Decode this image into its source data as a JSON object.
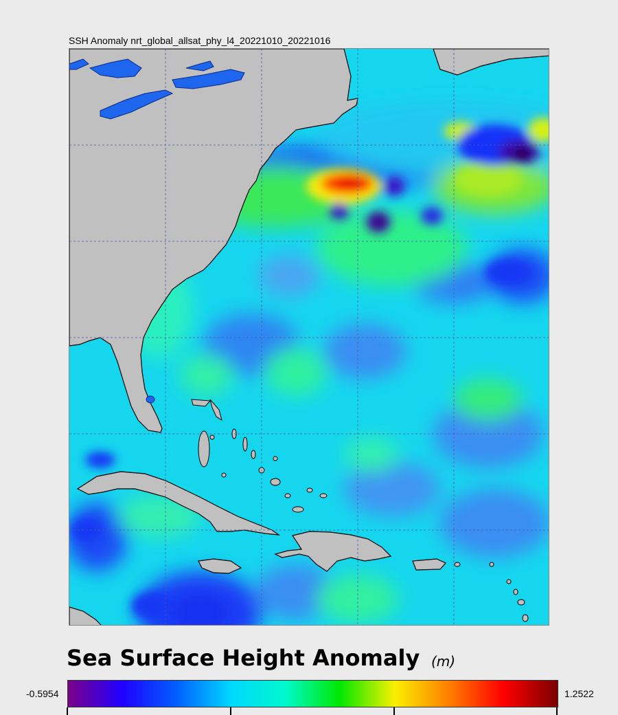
{
  "map": {
    "title": "SSH Anomaly nrt_global_allsat_phy_l4_20221010_20221016",
    "colors": {
      "land": "#c0c0c0",
      "lakes": "#1e66ee",
      "coastline": "#000000",
      "gridlines": "#4a5aa8",
      "ocean_base": "#16d6ee"
    }
  },
  "legend": {
    "title": "Sea Surface Height Anomaly",
    "units": "(m)",
    "min_label": "-0.5954",
    "max_label": "1.2522",
    "min_value": -0.5954,
    "max_value": 1.2522,
    "colormap": [
      "#7a0088",
      "#2000ff",
      "#0060ff",
      "#00d8ff",
      "#00f8cc",
      "#00e800",
      "#f8f000",
      "#ff8000",
      "#ff0000",
      "#7a0000"
    ]
  }
}
